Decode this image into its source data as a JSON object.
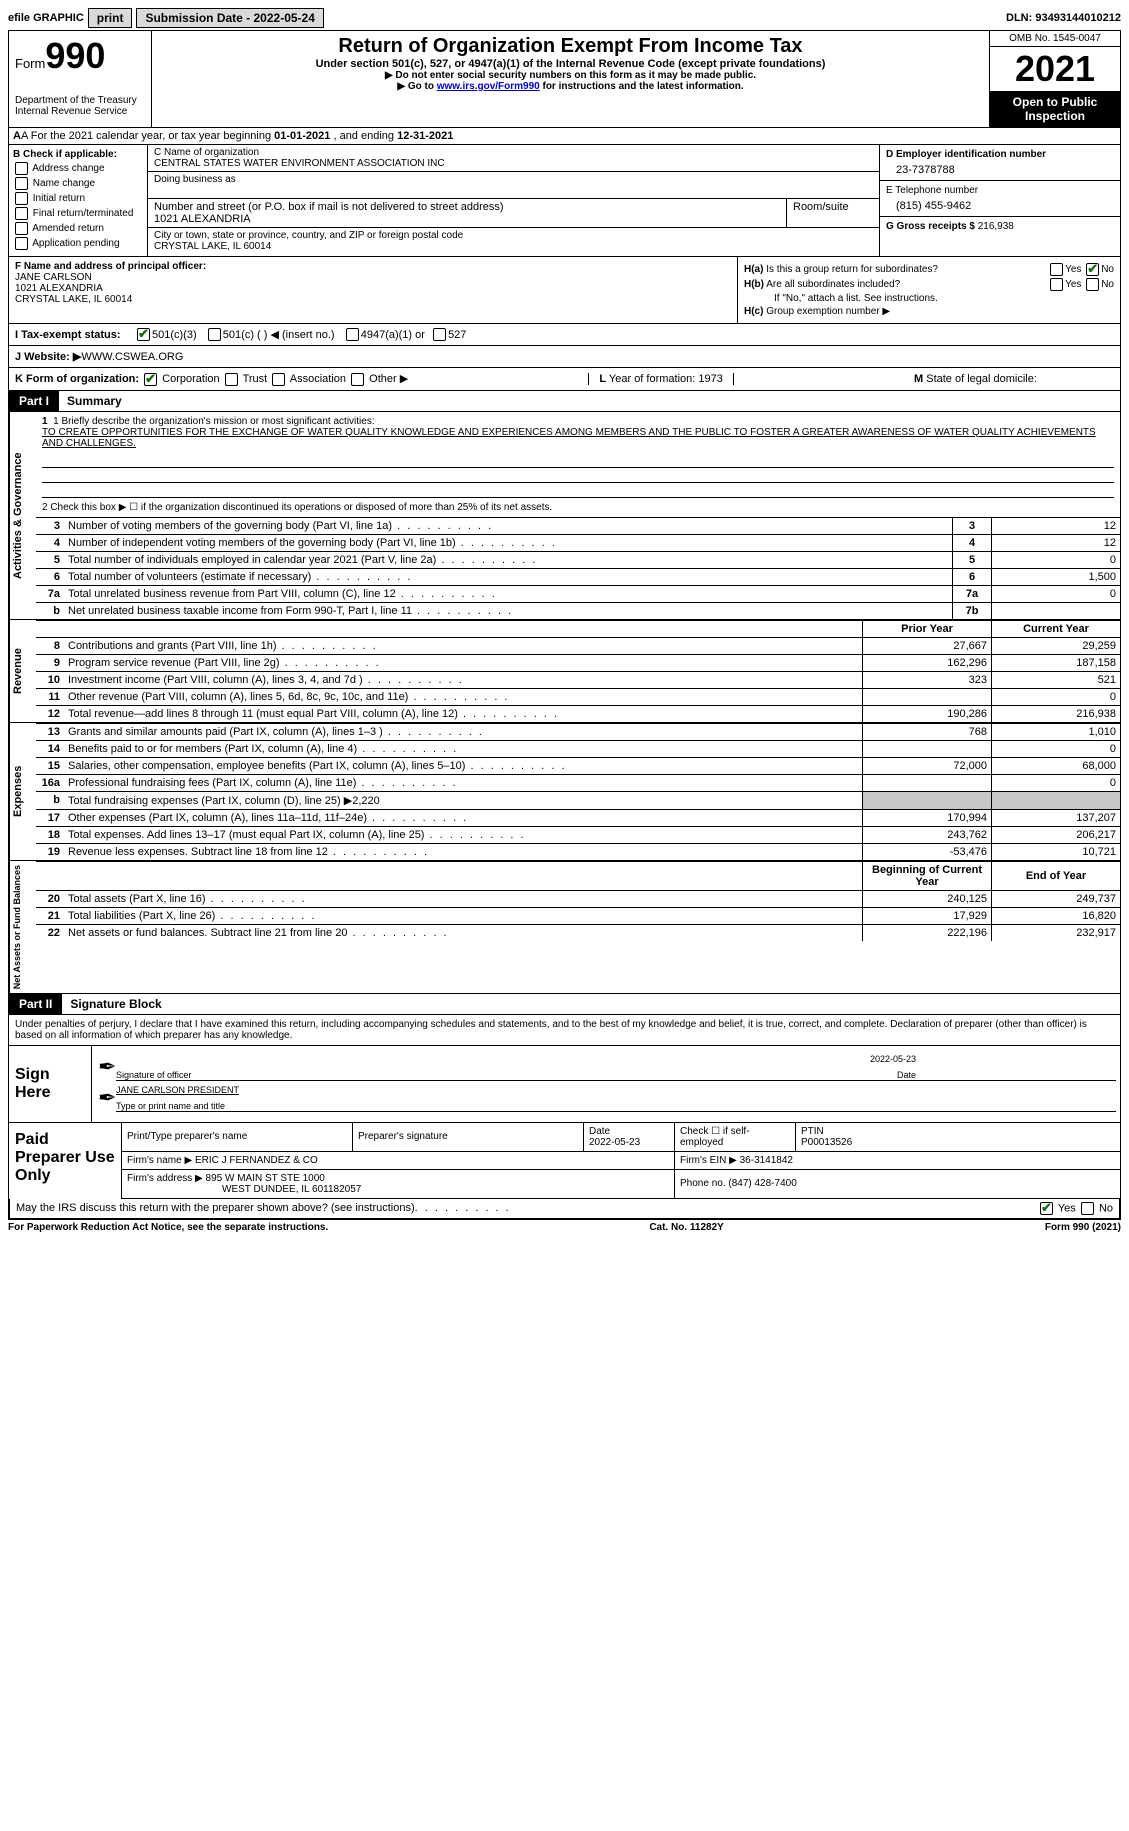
{
  "colors": {
    "black": "#000000",
    "white": "#ffffff",
    "grey_btn": "#dadada",
    "grey_cell": "#c8c8c8",
    "link": "#0000cc",
    "check_green": "#1a6b1a"
  },
  "top": {
    "efile": "efile GRAPHIC",
    "print": "print",
    "sub_label": "Submission Date - ",
    "sub_date": "2022-05-24",
    "dln_label": "DLN: ",
    "dln": "93493144010212"
  },
  "header": {
    "form": "Form",
    "num": "990",
    "dept1": "Department of the Treasury",
    "dept2": "Internal Revenue Service",
    "title": "Return of Organization Exempt From Income Tax",
    "sub": "Under section 501(c), 527, or 4947(a)(1) of the Internal Revenue Code (except private foundations)",
    "note1": "▶ Do not enter social security numbers on this form as it may be made public.",
    "note2_pre": "▶ Go to ",
    "note2_link": "www.irs.gov/Form990",
    "note2_post": " for instructions and the latest information.",
    "omb": "OMB No. 1545-0047",
    "year": "2021",
    "inspect1": "Open to Public",
    "inspect2": "Inspection"
  },
  "rowA": {
    "pre": "A For the 2021 calendar year, or tax year beginning ",
    "begin": "01-01-2021",
    "mid": "  , and ending  ",
    "end": "12-31-2021"
  },
  "secB": {
    "label": "B Check if applicable:",
    "opts": [
      "Address change",
      "Name change",
      "Initial return",
      "Final return/terminated",
      "Amended return",
      "Application pending"
    ]
  },
  "secC": {
    "name_label": "C Name of organization",
    "name": "CENTRAL STATES WATER ENVIRONMENT ASSOCIATION INC",
    "dba_label": "Doing business as",
    "addr_label": "Number and street (or P.O. box if mail is not delivered to street address)",
    "addr": "1021 ALEXANDRIA",
    "room_label": "Room/suite",
    "city_label": "City or town, state or province, country, and ZIP or foreign postal code",
    "city": "CRYSTAL LAKE, IL  60014"
  },
  "secD": {
    "ein_label": "D Employer identification number",
    "ein": "23-7378788",
    "tel_label": "E Telephone number",
    "tel": "(815) 455-9462",
    "gross_label": "G Gross receipts $ ",
    "gross": "216,938"
  },
  "secF": {
    "label": "F Name and address of principal officer:",
    "name": "JANE CARLSON",
    "addr": "1021 ALEXANDRIA",
    "city": "CRYSTAL LAKE, IL  60014"
  },
  "secH": {
    "a_label": "H(a)  Is this a group return for subordinates?",
    "b_label": "H(b)  Are all subordinates included?",
    "b_note": "If \"No,\" attach a list. See instructions.",
    "c_label": "H(c)  Group exemption number ▶",
    "yes": "Yes",
    "no": "No"
  },
  "rowI": {
    "label": "I    Tax-exempt status:",
    "o1": "501(c)(3)",
    "o2": "501(c) (   ) ◀ (insert no.)",
    "o3": "4947(a)(1) or",
    "o4": "527"
  },
  "rowJ": {
    "label": "J    Website: ▶",
    "val": "  WWW.CSWEA.ORG"
  },
  "rowK": {
    "left_label": "K Form of organization:",
    "corp": "Corporation",
    "trust": "Trust",
    "assoc": "Association",
    "other": "Other ▶",
    "mid": "L Year of formation: 1973",
    "right": "M State of legal domicile:"
  },
  "part1": {
    "label": "Part I",
    "title": "Summary",
    "line1_label": "1   Briefly describe the organization's mission or most significant activities:",
    "mission": "TO CREATE OPPORTUNITIES FOR THE EXCHANGE OF WATER QUALITY KNOWLEDGE AND EXPERIENCES AMONG MEMBERS AND THE PUBLIC TO FOSTER A GREATER AWARENESS OF WATER QUALITY ACHIEVEMENTS AND CHALLENGES.",
    "line2": "2   Check this box ▶ ☐  if the organization discontinued its operations or disposed of more than 25% of its net assets.",
    "sides": {
      "ag": "Activities & Governance",
      "rev": "Revenue",
      "exp": "Expenses",
      "net": "Net Assets or Fund Balances"
    },
    "cols": {
      "prior": "Prior Year",
      "current": "Current Year",
      "boy": "Beginning of Current Year",
      "eoy": "End of Year"
    },
    "ag_lines": [
      {
        "n": "3",
        "d": "Number of voting members of the governing body (Part VI, line 1a)",
        "r": "3",
        "v": "12"
      },
      {
        "n": "4",
        "d": "Number of independent voting members of the governing body (Part VI, line 1b)",
        "r": "4",
        "v": "12"
      },
      {
        "n": "5",
        "d": "Total number of individuals employed in calendar year 2021 (Part V, line 2a)",
        "r": "5",
        "v": "0"
      },
      {
        "n": "6",
        "d": "Total number of volunteers (estimate if necessary)",
        "r": "6",
        "v": "1,500"
      },
      {
        "n": "7a",
        "d": "Total unrelated business revenue from Part VIII, column (C), line 12",
        "r": "7a",
        "v": "0"
      },
      {
        "n": "b",
        "d": "Net unrelated business taxable income from Form 990-T, Part I, line 11",
        "r": "7b",
        "v": ""
      }
    ],
    "rev_lines": [
      {
        "n": "8",
        "d": "Contributions and grants (Part VIII, line 1h)",
        "p": "27,667",
        "c": "29,259"
      },
      {
        "n": "9",
        "d": "Program service revenue (Part VIII, line 2g)",
        "p": "162,296",
        "c": "187,158"
      },
      {
        "n": "10",
        "d": "Investment income (Part VIII, column (A), lines 3, 4, and 7d )",
        "p": "323",
        "c": "521"
      },
      {
        "n": "11",
        "d": "Other revenue (Part VIII, column (A), lines 5, 6d, 8c, 9c, 10c, and 11e)",
        "p": "",
        "c": "0"
      },
      {
        "n": "12",
        "d": "Total revenue—add lines 8 through 11 (must equal Part VIII, column (A), line 12)",
        "p": "190,286",
        "c": "216,938"
      }
    ],
    "exp_lines": [
      {
        "n": "13",
        "d": "Grants and similar amounts paid (Part IX, column (A), lines 1–3 )",
        "p": "768",
        "c": "1,010"
      },
      {
        "n": "14",
        "d": "Benefits paid to or for members (Part IX, column (A), line 4)",
        "p": "",
        "c": "0"
      },
      {
        "n": "15",
        "d": "Salaries, other compensation, employee benefits (Part IX, column (A), lines 5–10)",
        "p": "72,000",
        "c": "68,000"
      },
      {
        "n": "16a",
        "d": "Professional fundraising fees (Part IX, column (A), line 11e)",
        "p": "",
        "c": "0"
      },
      {
        "n": "b",
        "d": "Total fundraising expenses (Part IX, column (D), line 25) ▶2,220",
        "p": "grey",
        "c": "grey"
      },
      {
        "n": "17",
        "d": "Other expenses (Part IX, column (A), lines 11a–11d, 11f–24e)",
        "p": "170,994",
        "c": "137,207"
      },
      {
        "n": "18",
        "d": "Total expenses. Add lines 13–17 (must equal Part IX, column (A), line 25)",
        "p": "243,762",
        "c": "206,217"
      },
      {
        "n": "19",
        "d": "Revenue less expenses. Subtract line 18 from line 12",
        "p": "-53,476",
        "c": "10,721"
      }
    ],
    "net_lines": [
      {
        "n": "20",
        "d": "Total assets (Part X, line 16)",
        "p": "240,125",
        "c": "249,737"
      },
      {
        "n": "21",
        "d": "Total liabilities (Part X, line 26)",
        "p": "17,929",
        "c": "16,820"
      },
      {
        "n": "22",
        "d": "Net assets or fund balances. Subtract line 21 from line 20",
        "p": "222,196",
        "c": "232,917"
      }
    ]
  },
  "part2": {
    "label": "Part II",
    "title": "Signature Block",
    "text": "Under penalties of perjury, I declare that I have examined this return, including accompanying schedules and statements, and to the best of my knowledge and belief, it is true, correct, and complete. Declaration of preparer (other than officer) is based on all information of which preparer has any knowledge.",
    "sign_here": "Sign Here",
    "sig_officer": "Signature of officer",
    "sig_date": "2022-05-23",
    "date_label": "Date",
    "sig_name": "JANE CARLSON  PRESIDENT",
    "sig_name_label": "Type or print name and title",
    "paid_label": "Paid Preparer Use Only",
    "pn_label": "Print/Type preparer's name",
    "ps_label": "Preparer's signature",
    "pdate_label": "Date",
    "pdate": "2022-05-23",
    "pcheck": "Check ☐ if self-employed",
    "ptin_label": "PTIN",
    "ptin": "P00013526",
    "firm_name_label": "Firm's name    ▶",
    "firm_name": "ERIC J FERNANDEZ & CO",
    "firm_ein_label": "Firm's EIN ▶",
    "firm_ein": "36-3141842",
    "firm_addr_label": "Firm's address ▶",
    "firm_addr1": "895 W MAIN ST STE 1000",
    "firm_addr2": "WEST DUNDEE, IL  601182057",
    "firm_phone_label": "Phone no. ",
    "firm_phone": "(847) 428-7400",
    "discuss": "May the IRS discuss this return with the preparer shown above? (see instructions)"
  },
  "footer": {
    "left": "For Paperwork Reduction Act Notice, see the separate instructions.",
    "mid": "Cat. No. 11282Y",
    "right": "Form 990 (2021)"
  },
  "misc": {
    "yes": "Yes",
    "no": "No"
  }
}
